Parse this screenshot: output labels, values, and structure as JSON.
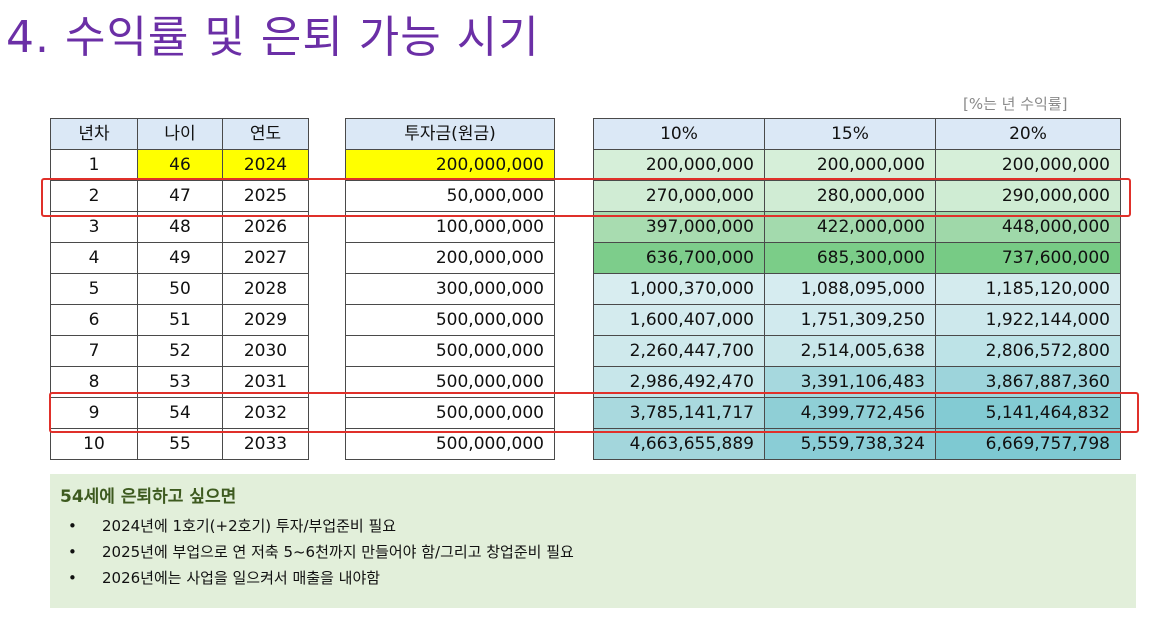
{
  "title": "4. 수익률 및 은퇴 가능 시기",
  "note": "[%는 년 수익률]",
  "left_headers": [
    "년차",
    "나이",
    "연도"
  ],
  "invest_header": "투자금(원금)",
  "rate_headers": [
    "10%",
    "15%",
    "20%"
  ],
  "rows": [
    {
      "year_no": "1",
      "age": "46",
      "year": "2024",
      "invest": "200,000,000",
      "r10": "200,000,000",
      "r15": "200,000,000",
      "r20": "200,000,000"
    },
    {
      "year_no": "2",
      "age": "47",
      "year": "2025",
      "invest": "50,000,000",
      "r10": "270,000,000",
      "r15": "280,000,000",
      "r20": "290,000,000"
    },
    {
      "year_no": "3",
      "age": "48",
      "year": "2026",
      "invest": "100,000,000",
      "r10": "397,000,000",
      "r15": "422,000,000",
      "r20": "448,000,000"
    },
    {
      "year_no": "4",
      "age": "49",
      "year": "2027",
      "invest": "200,000,000",
      "r10": "636,700,000",
      "r15": "685,300,000",
      "r20": "737,600,000"
    },
    {
      "year_no": "5",
      "age": "50",
      "year": "2028",
      "invest": "300,000,000",
      "r10": "1,000,370,000",
      "r15": "1,088,095,000",
      "r20": "1,185,120,000"
    },
    {
      "year_no": "6",
      "age": "51",
      "year": "2029",
      "invest": "500,000,000",
      "r10": "1,600,407,000",
      "r15": "1,751,309,250",
      "r20": "1,922,144,000"
    },
    {
      "year_no": "7",
      "age": "52",
      "year": "2030",
      "invest": "500,000,000",
      "r10": "2,260,447,700",
      "r15": "2,514,005,638",
      "r20": "2,806,572,800"
    },
    {
      "year_no": "8",
      "age": "53",
      "year": "2031",
      "invest": "500,000,000",
      "r10": "2,986,492,470",
      "r15": "3,391,106,483",
      "r20": "3,867,887,360"
    },
    {
      "year_no": "9",
      "age": "54",
      "year": "2032",
      "invest": "500,000,000",
      "r10": "3,785,141,717",
      "r15": "4,399,772,456",
      "r20": "5,141,464,832"
    },
    {
      "year_no": "10",
      "age": "55",
      "year": "2033",
      "invest": "500,000,000",
      "r10": "4,663,655,889",
      "r15": "5,559,738,324",
      "r20": "6,669,757,798"
    }
  ],
  "cell_colors": {
    "r10": [
      "#d6efd9",
      "#d0ecd4",
      "#a8dcb0",
      "#7dcd8b",
      "#d8edf0",
      "#d4ebee",
      "#cfe9ec",
      "#c7e6ea",
      "#a9d9de",
      "#a3d6dc"
    ],
    "r15": [
      "#d6efd9",
      "#d0ecd4",
      "#a3daad",
      "#7bcd88",
      "#d6ecf0",
      "#d1eaee",
      "#c9e7ea",
      "#a6d8de",
      "#8fcfd6",
      "#8acdd6"
    ],
    "r20": [
      "#d6efd9",
      "#cfecd3",
      "#9fd8a9",
      "#77cb85",
      "#d4ebee",
      "#cde8ec",
      "#bde3e7",
      "#9dd4db",
      "#83cbd3",
      "#7ec9d2"
    ]
  },
  "panel": {
    "title": "54세에 은퇴하고 싶으면",
    "items": [
      "2024년에 1호기(+2호기) 투자/부업준비 필요",
      "2025년에 부업으로 연 저축 5~6천까지 만들어야 함/그리고 창업준비 필요",
      "2026년에는 사업을 일으켜서 매출을 내야함"
    ],
    "bullet": "•"
  }
}
